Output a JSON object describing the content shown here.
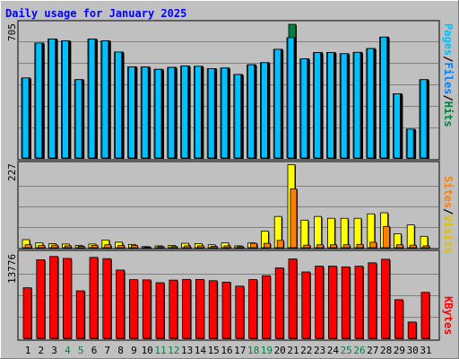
{
  "chart_data": [
    {
      "type": "bar",
      "title": "Daily usage for January 2025",
      "panel": "top",
      "ylim": [
        0,
        705
      ],
      "y_tick_label": "705",
      "categories": [
        "1",
        "2",
        "3",
        "4",
        "5",
        "6",
        "7",
        "8",
        "9",
        "10",
        "11",
        "12",
        "13",
        "14",
        "15",
        "16",
        "17",
        "18",
        "19",
        "20",
        "21",
        "22",
        "23",
        "24",
        "25",
        "26",
        "27",
        "28",
        "29",
        "30",
        "31"
      ],
      "legend": [
        "Pages",
        "Files",
        "Hits"
      ],
      "series": [
        {
          "name": "Hits",
          "color": "#008040",
          "values": [
            419,
            602,
            623,
            613,
            410,
            622,
            613,
            555,
            477,
            476,
            464,
            474,
            481,
            480,
            468,
            471,
            437,
            488,
            499,
            569,
            700,
            519,
            552,
            552,
            546,
            553,
            573,
            633,
            336,
            151,
            410
          ]
        },
        {
          "name": "Files",
          "color": "#00c0ff",
          "values": [
            419,
            602,
            623,
            613,
            410,
            622,
            613,
            555,
            477,
            476,
            464,
            474,
            481,
            480,
            468,
            471,
            437,
            488,
            499,
            569,
            630,
            519,
            552,
            552,
            546,
            553,
            573,
            633,
            336,
            151,
            410
          ]
        },
        {
          "name": "Pages",
          "color": "#00c0ff",
          "values": [
            419,
            602,
            623,
            613,
            410,
            622,
            613,
            555,
            477,
            476,
            464,
            474,
            481,
            480,
            468,
            471,
            437,
            488,
            499,
            569,
            630,
            519,
            552,
            552,
            546,
            553,
            573,
            633,
            336,
            151,
            410
          ]
        }
      ]
    },
    {
      "type": "bar",
      "panel": "middle",
      "ylim": [
        0,
        227
      ],
      "y_tick_label": "227",
      "categories": [
        "1",
        "2",
        "3",
        "4",
        "5",
        "6",
        "7",
        "8",
        "9",
        "10",
        "11",
        "12",
        "13",
        "14",
        "15",
        "16",
        "17",
        "18",
        "19",
        "20",
        "21",
        "22",
        "23",
        "24",
        "25",
        "26",
        "27",
        "28",
        "29",
        "30",
        "31"
      ],
      "legend": [
        "Sites",
        "Visits"
      ],
      "series": [
        {
          "name": "Visits",
          "color": "#ffff00",
          "values": [
            22,
            13,
            11,
            10,
            6,
            10,
            21,
            15,
            9,
            3,
            5,
            6,
            12,
            11,
            8,
            13,
            5,
            13,
            45,
            85,
            226,
            75,
            85,
            80,
            80,
            80,
            92,
            95,
            38,
            62,
            31
          ]
        },
        {
          "name": "Sites",
          "color": "#ff8000",
          "values": [
            8,
            6,
            7,
            5,
            4,
            6,
            8,
            6,
            6,
            2,
            3,
            3,
            5,
            5,
            4,
            5,
            3,
            12,
            12,
            20,
            160,
            7,
            8,
            8,
            8,
            9,
            15,
            58,
            8,
            7,
            5
          ]
        }
      ]
    },
    {
      "type": "bar",
      "panel": "bottom",
      "ylim": [
        0,
        13776
      ],
      "y_tick_label": "13776",
      "categories": [
        "1",
        "2",
        "3",
        "4",
        "5",
        "6",
        "7",
        "8",
        "9",
        "10",
        "11",
        "12",
        "13",
        "14",
        "15",
        "16",
        "17",
        "18",
        "19",
        "20",
        "21",
        "22",
        "23",
        "24",
        "25",
        "26",
        "27",
        "28",
        "29",
        "30",
        "31"
      ],
      "legend": [
        "KBytes"
      ],
      "series": [
        {
          "name": "KBytes",
          "color": "#ff0000",
          "values": [
            8090,
            12570,
            13100,
            12780,
            7600,
            12950,
            12740,
            10930,
            9390,
            9350,
            8900,
            9310,
            9420,
            9420,
            9220,
            8990,
            8350,
            9400,
            10020,
            11270,
            12700,
            10620,
            11550,
            11550,
            11430,
            11540,
            12080,
            12650,
            6190,
            2610,
            7360
          ]
        }
      ]
    }
  ],
  "x_labels": [
    {
      "text": "1",
      "color": "#000000"
    },
    {
      "text": "2",
      "color": "#000000"
    },
    {
      "text": "3",
      "color": "#000000"
    },
    {
      "text": "4",
      "color": "#008040"
    },
    {
      "text": "5",
      "color": "#008040"
    },
    {
      "text": "6",
      "color": "#000000"
    },
    {
      "text": "7",
      "color": "#000000"
    },
    {
      "text": "8",
      "color": "#000000"
    },
    {
      "text": "9",
      "color": "#000000"
    },
    {
      "text": "10",
      "color": "#000000"
    },
    {
      "text": "11",
      "color": "#008040"
    },
    {
      "text": "12",
      "color": "#008040"
    },
    {
      "text": "13",
      "color": "#000000"
    },
    {
      "text": "14",
      "color": "#000000"
    },
    {
      "text": "15",
      "color": "#000000"
    },
    {
      "text": "16",
      "color": "#000000"
    },
    {
      "text": "17",
      "color": "#000000"
    },
    {
      "text": "18",
      "color": "#008040"
    },
    {
      "text": "19",
      "color": "#008040"
    },
    {
      "text": "20",
      "color": "#000000"
    },
    {
      "text": "21",
      "color": "#000000"
    },
    {
      "text": "22",
      "color": "#000000"
    },
    {
      "text": "23",
      "color": "#000000"
    },
    {
      "text": "24",
      "color": "#000000"
    },
    {
      "text": "25",
      "color": "#008040"
    },
    {
      "text": "26",
      "color": "#008040"
    },
    {
      "text": "27",
      "color": "#000000"
    },
    {
      "text": "28",
      "color": "#000000"
    },
    {
      "text": "29",
      "color": "#000000"
    },
    {
      "text": "30",
      "color": "#000000"
    },
    {
      "text": "31",
      "color": "#000000"
    }
  ],
  "legend_right": {
    "top": [
      {
        "text": "Pages",
        "color": "#00c0ff"
      },
      {
        "text": "/",
        "color": "#000000"
      },
      {
        "text": "Files",
        "color": "#0080ff"
      },
      {
        "text": "/",
        "color": "#000000"
      },
      {
        "text": "Hits",
        "color": "#008040"
      }
    ],
    "middle": [
      {
        "text": "Sites",
        "color": "#ff8000"
      },
      {
        "text": "/",
        "color": "#000000"
      },
      {
        "text": "Visits",
        "color": "#e0c000"
      }
    ],
    "bottom": [
      {
        "text": "KBytes",
        "color": "#ff0000"
      }
    ]
  },
  "colors": {
    "background": "#c0c0c0",
    "title": "#0000ff",
    "grid": "#808080"
  }
}
